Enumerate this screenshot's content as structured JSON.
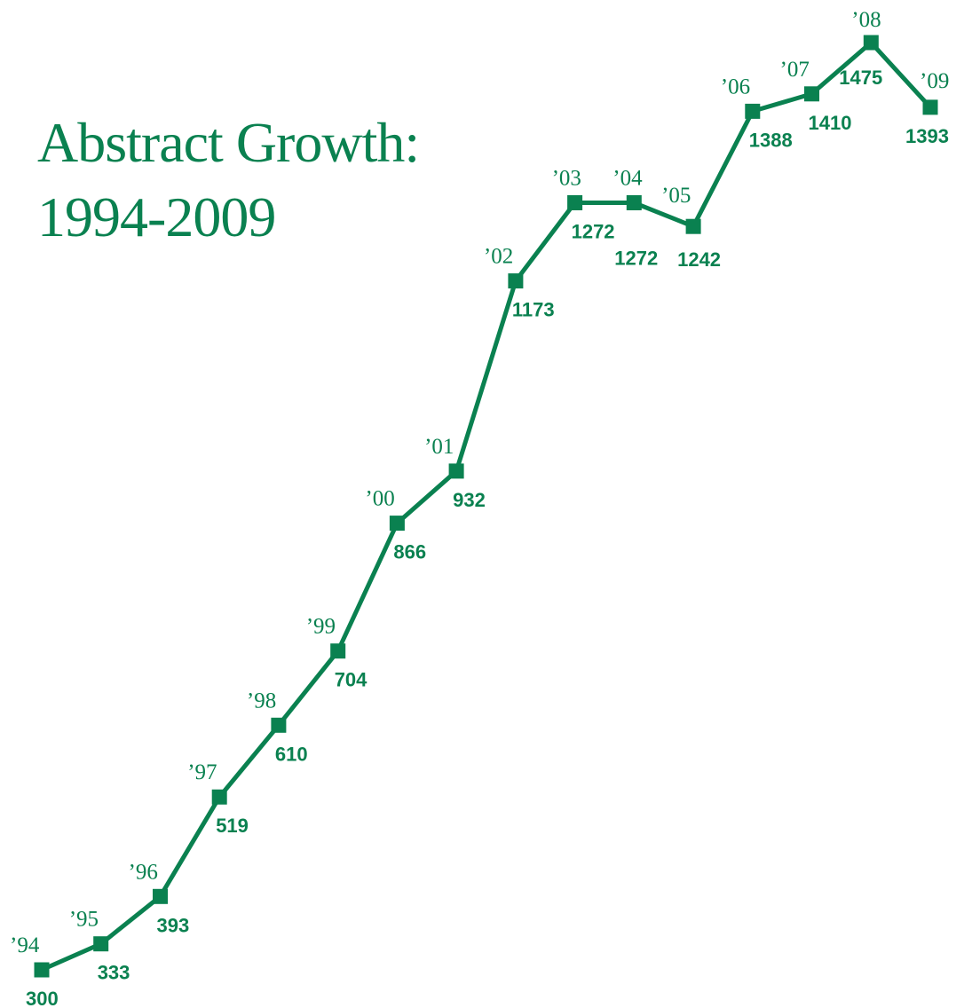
{
  "accent_color": "#0a8150",
  "chart_data": {
    "type": "line",
    "title_line1": "Abstract Growth:",
    "title_line2": "1994-2009",
    "xlabel": "",
    "ylabel": "",
    "grid": false,
    "legend": "none",
    "ylim": [
      300,
      1475
    ],
    "x": [
      1994,
      1995,
      1996,
      1997,
      1998,
      1999,
      2000,
      2001,
      2002,
      2003,
      2004,
      2005,
      2006,
      2007,
      2008,
      2009
    ],
    "year_labels": [
      "’94",
      "’95",
      "’96",
      "’97",
      "’98",
      "’99",
      "’00",
      "’01",
      "’02",
      "’03",
      "’04",
      "’05",
      "’06",
      "’07",
      "’08",
      "’09"
    ],
    "series": [
      {
        "values": [
          300,
          333,
          393,
          519,
          610,
          704,
          866,
          932,
          1173,
          1272,
          1272,
          1242,
          1388,
          1410,
          1475,
          1393
        ],
        "value_labels": [
          "300",
          "333",
          "393",
          "519",
          "610",
          "704",
          "866",
          "932",
          "1173",
          "1272",
          "1272",
          "1242",
          "1388",
          "1410",
          "1475",
          "1393"
        ]
      }
    ]
  }
}
